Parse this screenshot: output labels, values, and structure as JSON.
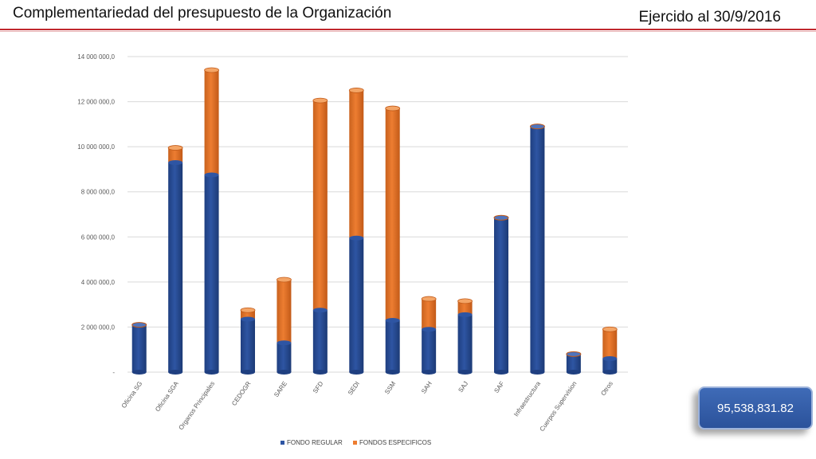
{
  "header": {
    "title": "Complementariedad del presupuesto de la Organización",
    "subtitle": "Ejercido al 30/9/2016"
  },
  "total": "95,538,831.82",
  "colors": {
    "regular": "#2e55a3",
    "especificos": "#ed7d31",
    "accent": "#c0272d"
  },
  "chart_data": {
    "type": "bar",
    "stacked": true,
    "categories": [
      "Oficina SG",
      "Oficina SGA",
      "Organos Principales",
      "CEDOGR",
      "SARE",
      "SFD",
      "SEDI",
      "SSM",
      "SAH",
      "SAJ",
      "SAF",
      "Infraestructura",
      "Cuerpos Supervision",
      "Otros"
    ],
    "series": [
      {
        "name": "FONDO REGULAR",
        "values": [
          2100000,
          9300000,
          8750000,
          2350000,
          1300000,
          2750000,
          5950000,
          2300000,
          1900000,
          2550000,
          6850000,
          10900000,
          800000,
          600000
        ]
      },
      {
        "name": "FONDOS ESPECIFICOS",
        "values": [
          0,
          650000,
          4650000,
          400000,
          2800000,
          9300000,
          6550000,
          9400000,
          1350000,
          600000,
          0,
          0,
          0,
          1300000
        ]
      }
    ],
    "ylim": [
      0,
      14000000
    ],
    "yticks": [
      0,
      2000000,
      4000000,
      6000000,
      8000000,
      10000000,
      12000000,
      14000000
    ],
    "ytick_labels": [
      "-",
      "2 000 000,0",
      "4 000 000,0",
      "6 000 000,0",
      "8 000 000,0",
      "10 000 000,0",
      "12 000 000,0",
      "14 000 000,0"
    ],
    "grid": true,
    "legend_position": "bottom"
  }
}
